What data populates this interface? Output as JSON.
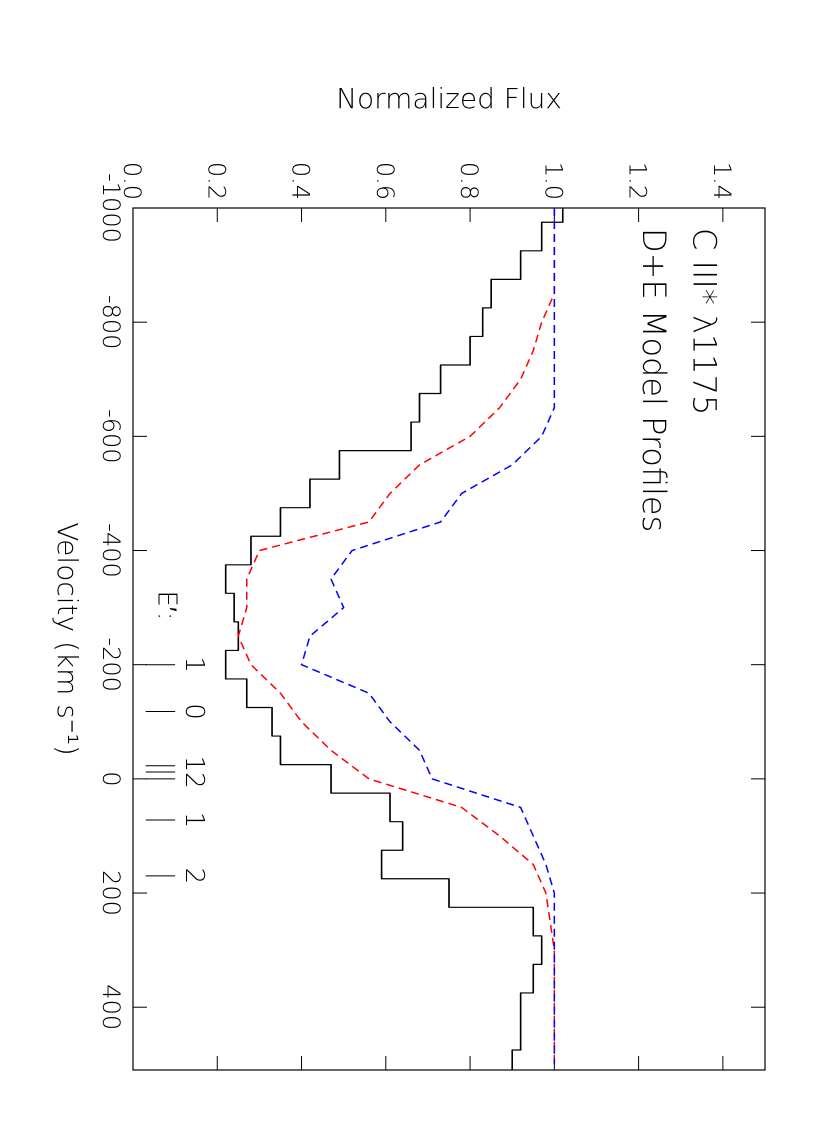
{
  "chart_data": {
    "type": "line",
    "title": "C III* λ1175",
    "subtitle": "D+E Model Profiles",
    "x_label": "Velocity (km s⁻¹)",
    "y_label": "Normalized Flux",
    "xlim": [
      -1000,
      510
    ],
    "ylim": [
      0,
      1.5
    ],
    "xticks": [
      -1000,
      -800,
      -600,
      -400,
      -200,
      0,
      200,
      400
    ],
    "yticks": [
      {
        "value": 0,
        "label": "0.0"
      },
      0.2,
      0.4,
      0.6,
      0.8,
      {
        "value": 1,
        "label": "1.0"
      },
      1.2,
      1.4
    ],
    "x": [
      -1000,
      -950,
      -900,
      -850,
      -800,
      -750,
      -700,
      -650,
      -600,
      -550,
      -500,
      -450,
      -400,
      -350,
      -300,
      -250,
      -200,
      -150,
      -100,
      -50,
      0,
      50,
      100,
      150,
      200,
      250,
      300,
      350,
      400,
      450,
      500
    ],
    "series": [
      {
        "color": "#000000",
        "style": "step",
        "values": [
          1.02,
          0.97,
          0.92,
          0.85,
          0.83,
          0.8,
          0.73,
          0.68,
          0.66,
          0.49,
          0.42,
          0.35,
          0.28,
          0.22,
          0.24,
          0.25,
          0.22,
          0.27,
          0.33,
          0.35,
          0.47,
          0.61,
          0.64,
          0.59,
          0.75,
          0.95,
          0.97,
          0.95,
          0.92,
          0.92,
          0.9
        ]
      },
      {
        "color": "#ff0000",
        "style": "dashed",
        "values": [
          1.0,
          1.0,
          1.0,
          1.0,
          0.97,
          0.95,
          0.92,
          0.87,
          0.8,
          0.68,
          0.61,
          0.56,
          0.3,
          0.27,
          0.27,
          0.25,
          0.28,
          0.35,
          0.4,
          0.47,
          0.56,
          0.78,
          0.87,
          0.95,
          0.98,
          0.99,
          1.0,
          1.0,
          1.0,
          1.0,
          1.0
        ]
      },
      {
        "color": "#0000ff",
        "style": "dashed",
        "values": [
          1.0,
          1.0,
          1.0,
          1.0,
          1.0,
          1.0,
          1.0,
          1.0,
          0.97,
          0.9,
          0.78,
          0.73,
          0.52,
          0.47,
          0.5,
          0.42,
          0.4,
          0.56,
          0.61,
          0.68,
          0.71,
          0.92,
          0.95,
          0.98,
          1.0,
          1.0,
          1.0,
          1.0,
          1.0,
          1.0,
          1.0
        ]
      }
    ],
    "marker_title": "E′:",
    "markers": [
      {
        "label": "1",
        "x": [
          -200
        ]
      },
      {
        "label": "0",
        "x": [
          -118
        ]
      },
      {
        "label": "12",
        "x": [
          -23,
          -12,
          0
        ]
      },
      {
        "label": "1",
        "x": [
          72
        ]
      },
      {
        "label": "2",
        "x": [
          170
        ]
      }
    ]
  }
}
